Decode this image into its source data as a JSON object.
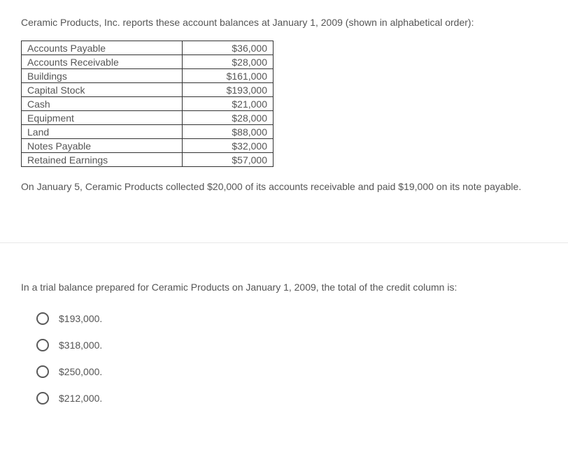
{
  "intro": "Ceramic Products, Inc. reports these account balances at January 1, 2009 (shown in alphabetical order):",
  "balances": {
    "rows": [
      {
        "name": "Accounts Payable",
        "value": "$36,000"
      },
      {
        "name": "Accounts Receivable",
        "value": "$28,000"
      },
      {
        "name": "Buildings",
        "value": "$161,000"
      },
      {
        "name": "Capital Stock",
        "value": "$193,000"
      },
      {
        "name": "Cash",
        "value": "$21,000"
      },
      {
        "name": "Equipment",
        "value": "$28,000"
      },
      {
        "name": "Land",
        "value": "$88,000"
      },
      {
        "name": "Notes Payable",
        "value": "$32,000"
      },
      {
        "name": "Retained Earnings",
        "value": "$57,000"
      }
    ],
    "border_color": "#333333",
    "text_color": "#555555",
    "name_col_width": 230,
    "value_col_width": 130,
    "font_size": 14
  },
  "after": "On January 5, Ceramic Products collected $20,000 of its accounts receivable and paid $19,000 on its note payable.",
  "question": "In a trial balance prepared for Ceramic Products on January 1, 2009, the total of the credit column is:",
  "options": [
    "$193,000.",
    "$318,000.",
    "$250,000.",
    "$212,000."
  ],
  "colors": {
    "background": "#ffffff",
    "text": "#555555",
    "divider": "#e7e7e7",
    "radio_border": "#5a5a5a"
  }
}
